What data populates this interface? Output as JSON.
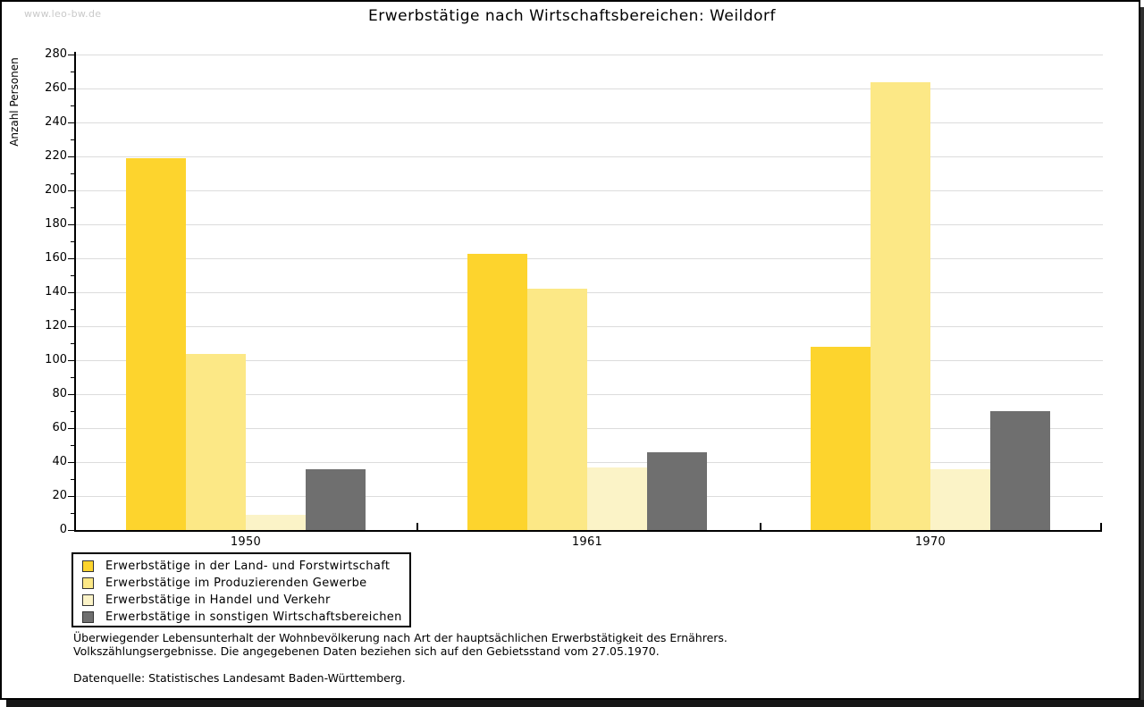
{
  "watermark": "www.leo-bw.de",
  "header": {
    "title": "Erwerbstätige nach Wirtschaftsbereichen: Weildorf"
  },
  "y_axis": {
    "label": "Anzahl Personen",
    "min": 0,
    "max": 280,
    "major_step": 20,
    "minor_step": 10,
    "tick_labels": [
      "0",
      "20",
      "40",
      "60",
      "80",
      "100",
      "120",
      "140",
      "160",
      "180",
      "200",
      "220",
      "240",
      "260",
      "280"
    ]
  },
  "chart_data": {
    "type": "bar",
    "title": "Erwerbstätige nach Wirtschaftsbereichen: Weildorf",
    "ylabel": "Anzahl Personen",
    "ylim": [
      0,
      280
    ],
    "grid": true,
    "legend_position": "bottom-left",
    "categories": [
      "1950",
      "1961",
      "1970"
    ],
    "series": [
      {
        "name": "Erwerbstätige in der Land- und Forstwirtschaft",
        "color": "#FDD42D",
        "values": [
          219,
          163,
          108
        ]
      },
      {
        "name": "Erwerbstätige im Produzierenden Gewerbe",
        "color": "#FCE886",
        "values": [
          104,
          142,
          264
        ]
      },
      {
        "name": "Erwerbstätige in Handel und Verkehr",
        "color": "#FBF3C7",
        "values": [
          9,
          37,
          36
        ]
      },
      {
        "name": "Erwerbstätige in sonstigen Wirtschaftsbereichen",
        "color": "#6F6F6F",
        "values": [
          36,
          46,
          70
        ]
      }
    ],
    "colors": {
      "gridline": "#dcdcdc",
      "axis": "#000000"
    }
  },
  "footnotes": {
    "line1": "Überwiegender Lebensunterhalt der Wohnbevölkerung nach Art der hauptsächlichen Erwerbstätigkeit des Ernährers.",
    "line2": "Volkszählungsergebnisse. Die angegebenen Daten beziehen sich auf den Gebietsstand vom 27.05.1970.",
    "source": "Datenquelle: Statistisches Landesamt Baden-Württemberg."
  }
}
